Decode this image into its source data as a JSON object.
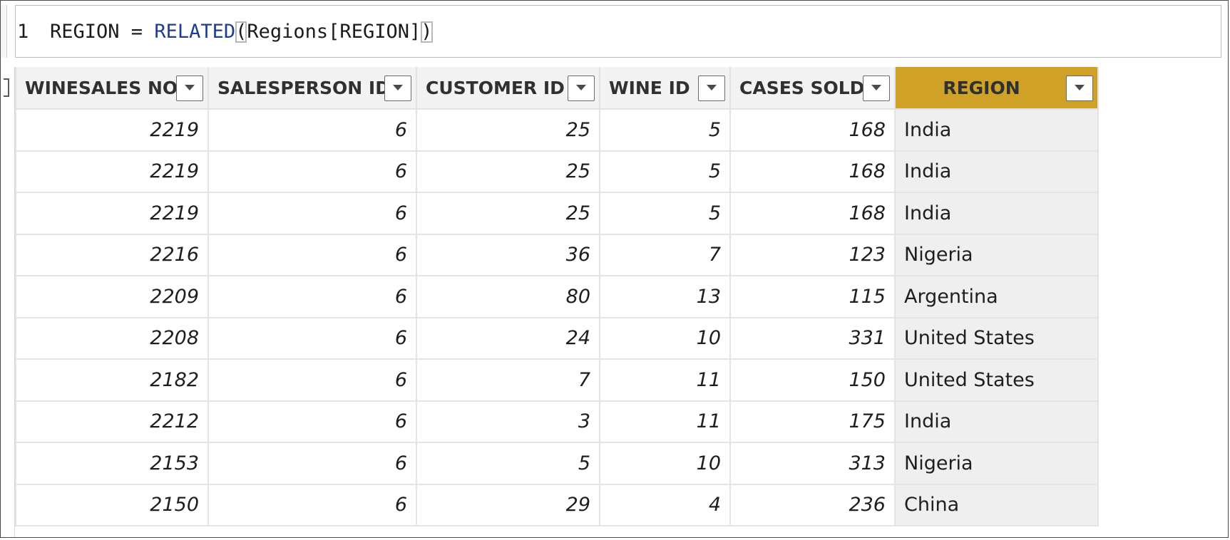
{
  "formula": {
    "line_number": "1",
    "column_name": "REGION",
    "operator": " = ",
    "function": "RELATED",
    "open_paren": "(",
    "argument": "Regions[REGION]",
    "close_paren": ")"
  },
  "table": {
    "columns": [
      {
        "label": "WINESALES NO"
      },
      {
        "label": "SALESPERSON ID"
      },
      {
        "label": "CUSTOMER ID"
      },
      {
        "label": "WINE ID"
      },
      {
        "label": "CASES SOLD"
      },
      {
        "label": "REGION",
        "highlighted": true
      }
    ],
    "rows": [
      [
        "2219",
        "6",
        "25",
        "5",
        "168",
        "India"
      ],
      [
        "2219",
        "6",
        "25",
        "5",
        "168",
        "India"
      ],
      [
        "2219",
        "6",
        "25",
        "5",
        "168",
        "India"
      ],
      [
        "2216",
        "6",
        "36",
        "7",
        "123",
        "Nigeria"
      ],
      [
        "2209",
        "6",
        "80",
        "13",
        "115",
        "Argentina"
      ],
      [
        "2208",
        "6",
        "24",
        "10",
        "331",
        "United States"
      ],
      [
        "2182",
        "6",
        "7",
        "11",
        "150",
        "United States"
      ],
      [
        "2212",
        "6",
        "3",
        "11",
        "175",
        "India"
      ],
      [
        "2153",
        "6",
        "5",
        "10",
        "313",
        "Nigeria"
      ],
      [
        "2150",
        "6",
        "29",
        "4",
        "236",
        "China"
      ]
    ]
  },
  "colors": {
    "highlight_header": "#cfa126",
    "function_token": "#1f3c94"
  }
}
